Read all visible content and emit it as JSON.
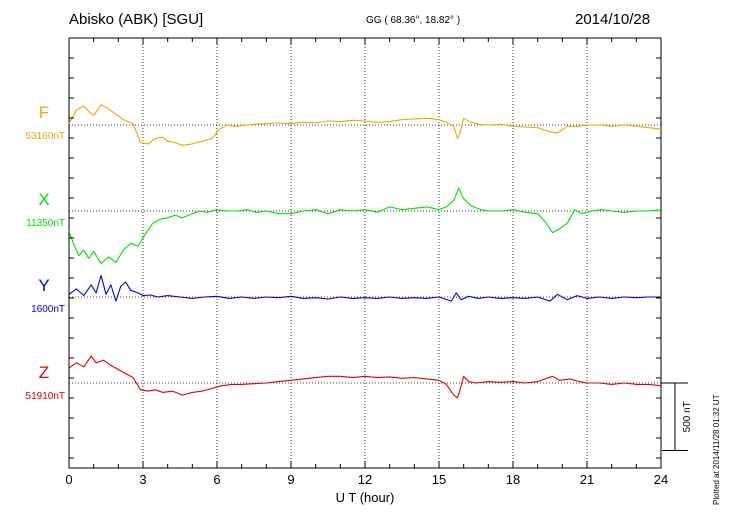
{
  "header": {
    "station": "Abisko (ABK)  [SGU]",
    "coords": "GG ( 68.36°,  18.82° )",
    "date": "2014/10/28"
  },
  "footnote": "Plotted at 2014/11/28 01:32 UT",
  "scale_label": "500 nT",
  "chart_data": {
    "type": "line",
    "title": "Abisko (ABK)  [SGU]",
    "xlabel": "U T (hour)",
    "ylabel": "",
    "xlim": [
      0,
      24
    ],
    "x_ticks": [
      "0",
      "3",
      "6",
      "9",
      "12",
      "15",
      "18",
      "21",
      "24"
    ],
    "grid": true,
    "scale_bar_nT": 500,
    "series": [
      {
        "name": "F",
        "baseline_label": "53160nT",
        "color": "#f0a800",
        "points": [
          [
            0,
            53170
          ],
          [
            0.3,
            53270
          ],
          [
            0.6,
            53300
          ],
          [
            0.8,
            53260
          ],
          [
            1.0,
            53230
          ],
          [
            1.3,
            53310
          ],
          [
            1.6,
            53280
          ],
          [
            1.9,
            53240
          ],
          [
            2.2,
            53200
          ],
          [
            2.6,
            53170
          ],
          [
            2.9,
            53030
          ],
          [
            3.2,
            53020
          ],
          [
            3.5,
            53060
          ],
          [
            3.8,
            53070
          ],
          [
            4.0,
            53040
          ],
          [
            4.3,
            53030
          ],
          [
            4.6,
            53010
          ],
          [
            5.0,
            53020
          ],
          [
            5.4,
            53040
          ],
          [
            5.8,
            53060
          ],
          [
            6.1,
            53130
          ],
          [
            6.4,
            53160
          ],
          [
            6.7,
            53150
          ],
          [
            7.0,
            53155
          ],
          [
            7.5,
            53165
          ],
          [
            8.0,
            53170
          ],
          [
            8.5,
            53175
          ],
          [
            9.0,
            53170
          ],
          [
            9.5,
            53180
          ],
          [
            10.0,
            53175
          ],
          [
            10.5,
            53190
          ],
          [
            11.0,
            53185
          ],
          [
            11.5,
            53195
          ],
          [
            12.0,
            53190
          ],
          [
            12.5,
            53180
          ],
          [
            13.0,
            53185
          ],
          [
            13.5,
            53200
          ],
          [
            14.0,
            53205
          ],
          [
            14.5,
            53210
          ],
          [
            15.0,
            53200
          ],
          [
            15.3,
            53180
          ],
          [
            15.6,
            53150
          ],
          [
            15.75,
            53060
          ],
          [
            15.85,
            53100
          ],
          [
            16.0,
            53210
          ],
          [
            16.3,
            53180
          ],
          [
            16.6,
            53165
          ],
          [
            17.0,
            53160
          ],
          [
            17.5,
            53165
          ],
          [
            18.0,
            53150
          ],
          [
            18.5,
            53145
          ],
          [
            19.0,
            53140
          ],
          [
            19.5,
            53110
          ],
          [
            19.8,
            53100
          ],
          [
            20.2,
            53150
          ],
          [
            20.6,
            53150
          ],
          [
            21.0,
            53160
          ],
          [
            21.5,
            53160
          ],
          [
            22.0,
            53150
          ],
          [
            22.5,
            53160
          ],
          [
            23.0,
            53150
          ],
          [
            23.5,
            53140
          ],
          [
            24.0,
            53130
          ]
        ]
      },
      {
        "name": "X",
        "baseline_label": "11350nT",
        "color": "#00e000",
        "points": [
          [
            0,
            11200
          ],
          [
            0.2,
            11100
          ],
          [
            0.4,
            11020
          ],
          [
            0.6,
            11060
          ],
          [
            0.8,
            11000
          ],
          [
            1.0,
            11050
          ],
          [
            1.3,
            10960
          ],
          [
            1.6,
            11010
          ],
          [
            1.9,
            10970
          ],
          [
            2.2,
            11060
          ],
          [
            2.5,
            11110
          ],
          [
            2.8,
            11090
          ],
          [
            3.1,
            11180
          ],
          [
            3.4,
            11260
          ],
          [
            3.7,
            11290
          ],
          [
            4.0,
            11300
          ],
          [
            4.3,
            11320
          ],
          [
            4.6,
            11300
          ],
          [
            5.0,
            11330
          ],
          [
            5.3,
            11350
          ],
          [
            5.6,
            11340
          ],
          [
            6.0,
            11360
          ],
          [
            6.4,
            11350
          ],
          [
            6.8,
            11350
          ],
          [
            7.2,
            11360
          ],
          [
            7.6,
            11340
          ],
          [
            8.0,
            11350
          ],
          [
            8.5,
            11330
          ],
          [
            9.0,
            11330
          ],
          [
            9.5,
            11350
          ],
          [
            10.0,
            11360
          ],
          [
            10.5,
            11330
          ],
          [
            11.0,
            11360
          ],
          [
            11.5,
            11350
          ],
          [
            12.0,
            11360
          ],
          [
            12.5,
            11340
          ],
          [
            13.0,
            11380
          ],
          [
            13.5,
            11360
          ],
          [
            14.0,
            11370
          ],
          [
            14.5,
            11380
          ],
          [
            15.0,
            11360
          ],
          [
            15.3,
            11380
          ],
          [
            15.6,
            11430
          ],
          [
            15.8,
            11520
          ],
          [
            16.0,
            11440
          ],
          [
            16.3,
            11390
          ],
          [
            16.7,
            11360
          ],
          [
            17.0,
            11350
          ],
          [
            17.5,
            11350
          ],
          [
            18.0,
            11360
          ],
          [
            18.5,
            11340
          ],
          [
            19.0,
            11330
          ],
          [
            19.3,
            11270
          ],
          [
            19.6,
            11190
          ],
          [
            19.9,
            11220
          ],
          [
            20.2,
            11260
          ],
          [
            20.5,
            11360
          ],
          [
            20.8,
            11330
          ],
          [
            21.2,
            11350
          ],
          [
            21.6,
            11360
          ],
          [
            22.0,
            11350
          ],
          [
            22.5,
            11340
          ],
          [
            23.0,
            11350
          ],
          [
            23.5,
            11350
          ],
          [
            24.0,
            11360
          ]
        ]
      },
      {
        "name": "Y",
        "baseline_label": "1600nT",
        "color": "#0000dd",
        "points": [
          [
            0,
            1620
          ],
          [
            0.3,
            1660
          ],
          [
            0.6,
            1610
          ],
          [
            0.9,
            1690
          ],
          [
            1.1,
            1630
          ],
          [
            1.3,
            1760
          ],
          [
            1.5,
            1620
          ],
          [
            1.7,
            1690
          ],
          [
            1.9,
            1570
          ],
          [
            2.1,
            1680
          ],
          [
            2.3,
            1710
          ],
          [
            2.5,
            1650
          ],
          [
            2.8,
            1630
          ],
          [
            3.0,
            1610
          ],
          [
            3.3,
            1615
          ],
          [
            3.6,
            1600
          ],
          [
            4.0,
            1610
          ],
          [
            4.5,
            1600
          ],
          [
            5.0,
            1590
          ],
          [
            5.5,
            1600
          ],
          [
            6.0,
            1605
          ],
          [
            6.5,
            1590
          ],
          [
            7.0,
            1600
          ],
          [
            7.5,
            1590
          ],
          [
            8.0,
            1600
          ],
          [
            8.5,
            1595
          ],
          [
            9.0,
            1605
          ],
          [
            9.5,
            1590
          ],
          [
            10.0,
            1595
          ],
          [
            10.5,
            1585
          ],
          [
            11.0,
            1600
          ],
          [
            11.5,
            1590
          ],
          [
            12.0,
            1595
          ],
          [
            12.5,
            1590
          ],
          [
            13.0,
            1600
          ],
          [
            13.5,
            1590
          ],
          [
            14.0,
            1595
          ],
          [
            14.5,
            1590
          ],
          [
            15.0,
            1600
          ],
          [
            15.5,
            1570
          ],
          [
            15.7,
            1630
          ],
          [
            15.9,
            1580
          ],
          [
            16.2,
            1605
          ],
          [
            16.6,
            1590
          ],
          [
            17.0,
            1600
          ],
          [
            17.5,
            1590
          ],
          [
            18.0,
            1595
          ],
          [
            18.5,
            1590
          ],
          [
            19.0,
            1600
          ],
          [
            19.5,
            1570
          ],
          [
            19.8,
            1620
          ],
          [
            20.2,
            1580
          ],
          [
            20.6,
            1610
          ],
          [
            21.0,
            1590
          ],
          [
            21.5,
            1600
          ],
          [
            22.0,
            1590
          ],
          [
            22.5,
            1600
          ],
          [
            23.0,
            1595
          ],
          [
            23.5,
            1600
          ],
          [
            24.0,
            1600
          ]
        ]
      },
      {
        "name": "Z",
        "baseline_label": "51910nT",
        "color": "#e00000",
        "points": [
          [
            0,
            52020
          ],
          [
            0.3,
            52060
          ],
          [
            0.6,
            52030
          ],
          [
            0.9,
            52110
          ],
          [
            1.1,
            52060
          ],
          [
            1.4,
            52080
          ],
          [
            1.7,
            52040
          ],
          [
            2.0,
            52010
          ],
          [
            2.3,
            51980
          ],
          [
            2.6,
            51950
          ],
          [
            2.9,
            51860
          ],
          [
            3.2,
            51850
          ],
          [
            3.5,
            51860
          ],
          [
            3.8,
            51840
          ],
          [
            4.2,
            51850
          ],
          [
            4.6,
            51820
          ],
          [
            5.0,
            51840
          ],
          [
            5.4,
            51850
          ],
          [
            5.8,
            51870
          ],
          [
            6.2,
            51890
          ],
          [
            6.6,
            51900
          ],
          [
            7.0,
            51900
          ],
          [
            7.5,
            51905
          ],
          [
            8.0,
            51910
          ],
          [
            8.5,
            51920
          ],
          [
            9.0,
            51930
          ],
          [
            9.5,
            51940
          ],
          [
            10.0,
            51950
          ],
          [
            10.5,
            51960
          ],
          [
            11.0,
            51960
          ],
          [
            11.5,
            51950
          ],
          [
            12.0,
            51960
          ],
          [
            12.5,
            51950
          ],
          [
            13.0,
            51955
          ],
          [
            13.5,
            51945
          ],
          [
            14.0,
            51950
          ],
          [
            14.5,
            51940
          ],
          [
            15.0,
            51930
          ],
          [
            15.3,
            51900
          ],
          [
            15.6,
            51820
          ],
          [
            15.75,
            51800
          ],
          [
            15.85,
            51860
          ],
          [
            16.0,
            51960
          ],
          [
            16.2,
            51920
          ],
          [
            16.5,
            51910
          ],
          [
            17.0,
            51920
          ],
          [
            17.5,
            51915
          ],
          [
            18.0,
            51920
          ],
          [
            18.5,
            51910
          ],
          [
            19.0,
            51920
          ],
          [
            19.3,
            51940
          ],
          [
            19.6,
            51960
          ],
          [
            19.9,
            51930
          ],
          [
            20.3,
            51940
          ],
          [
            20.7,
            51920
          ],
          [
            21.0,
            51910
          ],
          [
            21.5,
            51910
          ],
          [
            22.0,
            51900
          ],
          [
            22.5,
            51910
          ],
          [
            23.0,
            51900
          ],
          [
            23.5,
            51900
          ],
          [
            24.0,
            51890
          ]
        ]
      }
    ]
  }
}
